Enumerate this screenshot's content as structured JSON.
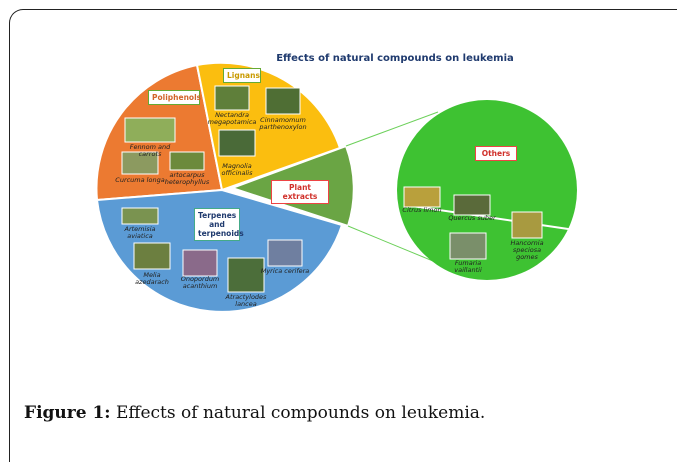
{
  "title": "Effects of natural compounds on leukemia",
  "polyphenols": {
    "label": "Poliphenols",
    "plants": [
      "Fennom and carrots",
      "Curcuma longa",
      "artocarpus heterophyllus"
    ]
  },
  "lignans": {
    "label": "Lignans",
    "plants": [
      "Nectandra megapotamica",
      "Cinnamomum parthenoxylon",
      "Magnolia officinalis"
    ]
  },
  "plant_extracts": {
    "label": "Plant extracts"
  },
  "terpenes": {
    "label": "Terpenes and terpenoids",
    "plants": [
      "Artemisia aviatica",
      "Melia azedarach",
      "Onopordum acanthium",
      "Atractylodes lancea",
      "Myrica cerifera"
    ]
  },
  "others": {
    "label": "Others",
    "plants": [
      "Citrus limon",
      "Quercus suber",
      "Fumaria vaillantii",
      "Hancornia speciosa gomes"
    ]
  },
  "caption": {
    "label": "Figure 1:",
    "text": "Effects of natural compounds on leukemia."
  }
}
